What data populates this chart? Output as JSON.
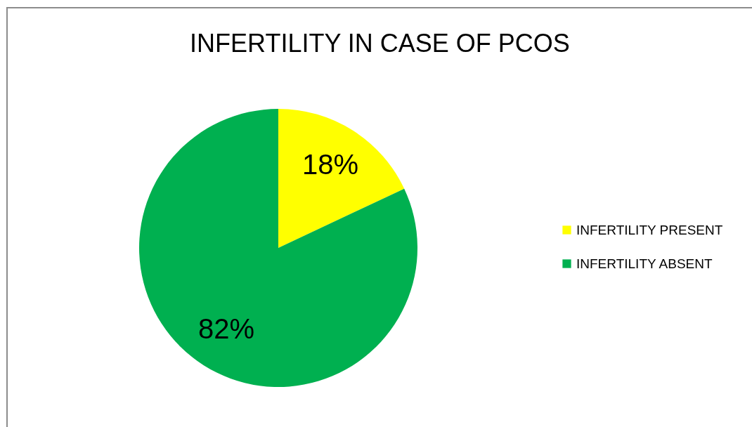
{
  "chart_data": {
    "type": "pie",
    "title": "INFERTILITY IN CASE OF PCOS",
    "categories": [
      "INFERTILITY PRESENT",
      "INFERTILITY ABSENT"
    ],
    "values": [
      18,
      82
    ],
    "colors": [
      "#ffff00",
      "#00b050"
    ],
    "value_labels": [
      "18%",
      "82%"
    ],
    "legend": "right"
  }
}
